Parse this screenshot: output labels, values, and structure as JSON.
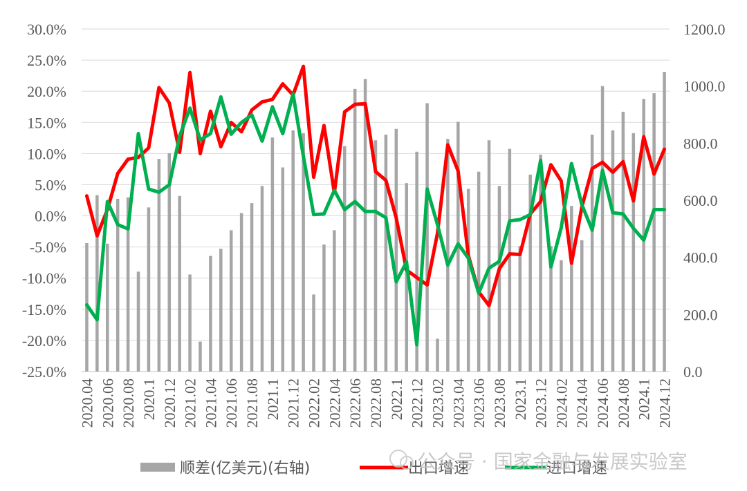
{
  "chart_data": {
    "type": "bar+line",
    "x": [
      "2020.04",
      "2020.05",
      "2020.06",
      "2020.07",
      "2020.08",
      "2020.09",
      "2020.1",
      "2020.11",
      "2020.12",
      "2021.01",
      "2021.02",
      "2021.03",
      "2021.04",
      "2021.05",
      "2021.06",
      "2021.07",
      "2021.08",
      "2021.09",
      "2021.1",
      "2021.11",
      "2021.12",
      "2022.01",
      "2022.02",
      "2022.03",
      "2022.04",
      "2022.05",
      "2022.06",
      "2022.07",
      "2022.08",
      "2022.09",
      "2022.1",
      "2022.11",
      "2022.12",
      "2023.01",
      "2023.02",
      "2023.03",
      "2023.04",
      "2023.05",
      "2023.06",
      "2023.07",
      "2023.08",
      "2023.09",
      "2023.1",
      "2023.11",
      "2023.12",
      "2024.01",
      "2024.02",
      "2024.03",
      "2024.04",
      "2024.05",
      "2024.06",
      "2024.07",
      "2024.08",
      "2024.09",
      "2024.1",
      "2024.11",
      "2024.12"
    ],
    "x_tick_labels": [
      "2020.04",
      "2020.06",
      "2020.08",
      "2020.1",
      "2020.12",
      "2021.02",
      "2021.04",
      "2021.06",
      "2021.08",
      "2021.1",
      "2021.12",
      "2022.02",
      "2022.04",
      "2022.06",
      "2022.08",
      "2022.1",
      "2022.12",
      "2023.02",
      "2023.04",
      "2023.06",
      "2023.08",
      "2023.1",
      "2023.12",
      "2024.02",
      "2024.04",
      "2024.06",
      "2024.08",
      "2024.1",
      "2024.12"
    ],
    "series": [
      {
        "name": "顺差(亿美元)(右轴)",
        "type": "bar",
        "axis": "right",
        "color": "#a6a6a6",
        "values": [
          450,
          618,
          448,
          605,
          610,
          350,
          575,
          745,
          765,
          615,
          340,
          105,
          405,
          430,
          495,
          555,
          590,
          650,
          820,
          715,
          845,
          835,
          270,
          445,
          495,
          790,
          990,
          1025,
          810,
          830,
          850,
          660,
          770,
          940,
          115,
          815,
          875,
          640,
          700,
          810,
          650,
          780,
          440,
          690,
          760,
          440,
          390,
          580,
          460,
          830,
          1000,
          845,
          910,
          835,
          955,
          975,
          1050
        ]
      },
      {
        "name": "出口增速",
        "type": "line",
        "axis": "left",
        "color": "#ff0000",
        "values": [
          3.2,
          -3.2,
          1.0,
          6.8,
          9.1,
          9.4,
          10.9,
          20.6,
          18.1,
          10.2,
          23.0,
          10.0,
          16.8,
          11.1,
          15.0,
          13.5,
          17.0,
          18.3,
          18.7,
          21.2,
          19.4,
          24.0,
          6.2,
          14.5,
          3.7,
          16.7,
          17.9,
          18.0,
          7.1,
          5.7,
          -0.3,
          -8.7,
          -9.9,
          -11.1,
          -2.8,
          11.4,
          7.2,
          -6.4,
          -12.2,
          -14.4,
          -8.5,
          -6.1,
          -6.2,
          0.3,
          2.3,
          8.2,
          5.6,
          -7.6,
          1.4,
          7.6,
          8.6,
          7.0,
          8.7,
          2.4,
          12.7,
          6.7,
          10.7
        ]
      },
      {
        "name": "进口增速",
        "type": "line",
        "axis": "left",
        "color": "#00b050",
        "values": [
          -14.3,
          -16.7,
          2.3,
          -1.4,
          -2.1,
          13.2,
          4.3,
          3.8,
          5.0,
          12.8,
          17.3,
          12.2,
          13.2,
          19.1,
          13.1,
          15.0,
          16.2,
          12.0,
          17.5,
          13.2,
          19.6,
          9.6,
          0.2,
          0.3,
          4.1,
          1.0,
          2.3,
          0.7,
          0.7,
          -0.3,
          -10.6,
          -7.4,
          -20.7,
          4.3,
          -1.4,
          -7.9,
          -4.5,
          -6.8,
          -12.4,
          -8.4,
          -7.3,
          -0.8,
          -0.6,
          0.2,
          8.9,
          -8.2,
          -1.9,
          8.4,
          1.8,
          -2.3,
          7.3,
          0.5,
          0.3,
          -2.0,
          -3.9,
          1.0,
          1.0
        ]
      }
    ],
    "left_axis": {
      "min": -25,
      "max": 30,
      "step": 5,
      "format": "percent_1dp"
    },
    "right_axis": {
      "min": 0,
      "max": 1200,
      "step": 200,
      "format": "1dp"
    },
    "grid": true,
    "legend_position": "bottom"
  },
  "legend": {
    "bar_label": "顺差(亿美元)(右轴)",
    "export_label": "出口增速",
    "import_label": "进口增速"
  },
  "watermark": {
    "text": "公众号 · 国家金融与发展实验室"
  }
}
